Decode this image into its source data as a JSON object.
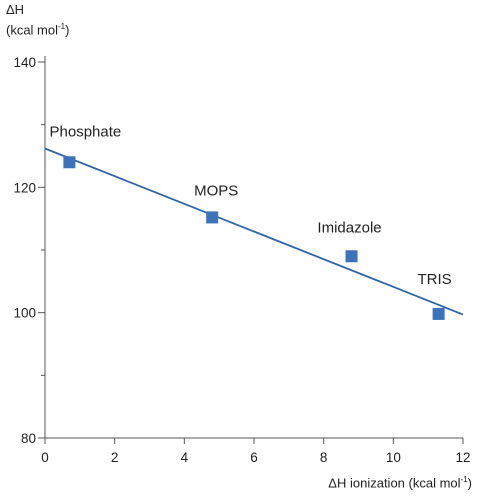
{
  "chart_data": {
    "type": "scatter",
    "title": "",
    "ylabel_line1": "ΔH",
    "ylabel_line2": "(kcal mol",
    "ylabel_sup": "-1",
    "ylabel_close": ")",
    "xlabel": "ΔH ionization (kcal mol",
    "xlabel_sup": "-1",
    "xlabel_close": ")",
    "xlim": [
      0,
      12
    ],
    "ylim": [
      80,
      140
    ],
    "x_ticks": [
      0,
      2,
      4,
      6,
      8,
      10,
      12
    ],
    "y_ticks": [
      80,
      100,
      120,
      140
    ],
    "points": [
      {
        "label": "Phosphate",
        "x": 0.7,
        "y": 124
      },
      {
        "label": "MOPS",
        "x": 4.8,
        "y": 115.2
      },
      {
        "label": "Imidazole",
        "x": 8.8,
        "y": 109
      },
      {
        "label": "TRIS",
        "x": 11.3,
        "y": 99.8
      }
    ],
    "fit_line": {
      "x": [
        0,
        12
      ],
      "y": [
        126.2,
        99.7
      ]
    },
    "grid": false,
    "colors": {
      "marker": "#3b72b9",
      "line": "#2f64a8",
      "axis": "#555555"
    }
  }
}
